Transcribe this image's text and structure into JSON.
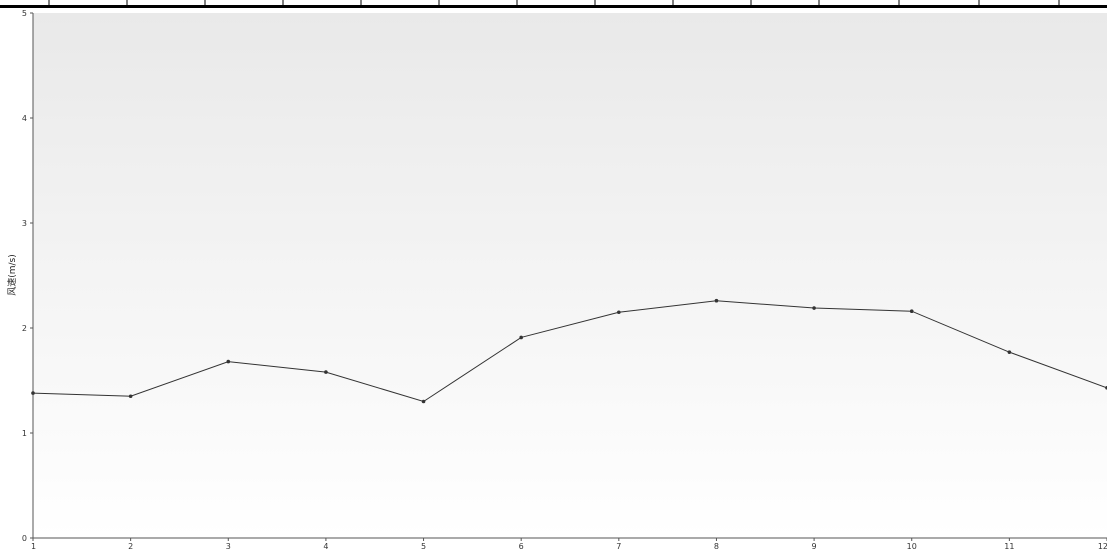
{
  "chart_data": {
    "type": "line",
    "title": "",
    "xlabel": "",
    "ylabel": "风速(m/s)",
    "x": [
      1,
      2,
      3,
      4,
      5,
      6,
      7,
      8,
      9,
      10,
      11,
      12
    ],
    "series": [
      {
        "values": [
          1.38,
          1.35,
          1.68,
          1.58,
          1.3,
          1.91,
          2.15,
          2.26,
          2.19,
          2.16,
          1.77,
          1.43
        ]
      }
    ],
    "xlim": [
      1,
      12
    ],
    "ylim": [
      0,
      5
    ],
    "x_ticks": [
      "1",
      "2",
      "3",
      "4",
      "5",
      "6",
      "7",
      "8",
      "9",
      "10",
      "11",
      "12"
    ],
    "y_ticks": [
      "0",
      "1",
      "2",
      "3",
      "4",
      "5"
    ],
    "grid": false,
    "line_color": "#333333",
    "background_gradient": [
      "#e9e9e9",
      "#ffffff"
    ]
  }
}
